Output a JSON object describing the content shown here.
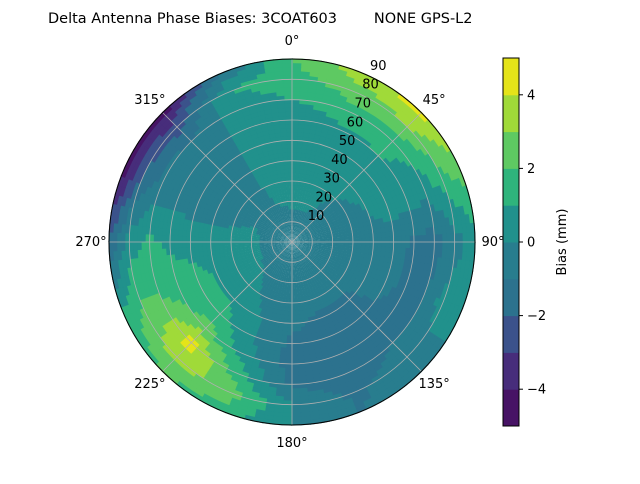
{
  "chart_data": {
    "type": "heatmap",
    "subtype": "polar filled contour",
    "title": "Delta Antenna Phase Biases: 3COAT603        NONE GPS-L2",
    "angular_axis": {
      "zero_location": "top",
      "direction": "clockwise",
      "tick_labels": [
        "0°",
        "45°",
        "90°",
        "135°",
        "180°",
        "225°",
        "270°",
        "315°"
      ],
      "tick_values": [
        0,
        45,
        90,
        135,
        180,
        225,
        270,
        315
      ]
    },
    "radial_axis": {
      "range": [
        0,
        90
      ],
      "tick_values": [
        10,
        20,
        30,
        40,
        50,
        60,
        70,
        80,
        90
      ],
      "tick_labels": [
        "10",
        "20",
        "30",
        "40",
        "50",
        "60",
        "70",
        "80",
        "90"
      ],
      "grid": true
    },
    "colorbar": {
      "label": "Bias (mm)",
      "range": [
        -5,
        5
      ],
      "levels": [
        -5,
        -4,
        -3,
        -2,
        -1,
        0,
        1,
        2,
        3,
        4,
        5
      ],
      "tick_values": [
        -4,
        -2,
        0,
        2,
        4
      ],
      "tick_labels": [
        "−4",
        "−2",
        "0",
        "2",
        "4"
      ],
      "colormap": "viridis",
      "level_colors": [
        "#471365",
        "#472d7b",
        "#3b528b",
        "#2c728e",
        "#287d8e",
        "#21918c",
        "#2fb47c",
        "#5ec962",
        "#a0da39",
        "#e5e419"
      ]
    },
    "grid_azimuths": [
      0,
      22.5,
      45,
      67.5,
      90,
      112.5,
      135,
      157.5,
      180,
      202.5,
      225,
      247.5,
      270,
      292.5,
      315,
      337.5
    ],
    "grid_zenith": [
      0,
      10,
      20,
      30,
      40,
      50,
      60,
      70,
      80,
      90
    ],
    "values": [
      [
        -0.5,
        -0.5,
        -0.5,
        -0.5,
        -0.5,
        -0.5,
        -0.5,
        -0.5,
        -0.5,
        -0.5,
        -0.5,
        -0.5,
        -0.5,
        -0.5,
        -0.5,
        -0.5
      ],
      [
        -0.5,
        -0.5,
        -0.5,
        -0.5,
        -0.5,
        -0.5,
        -0.5,
        -0.5,
        -0.5,
        -0.5,
        -0.5,
        -0.5,
        -0.5,
        -0.5,
        -0.5,
        -0.5
      ],
      [
        0.3,
        0.3,
        -0.3,
        -0.5,
        -0.5,
        -0.5,
        -0.5,
        -0.5,
        -0.5,
        -0.5,
        0,
        0.3,
        0.5,
        0,
        -0.5,
        0
      ],
      [
        0.5,
        0.5,
        0,
        -0.5,
        -0.5,
        -0.5,
        -0.8,
        -0.8,
        -0.5,
        -0.3,
        0.5,
        0.5,
        0.5,
        -0.3,
        -0.8,
        0.3
      ],
      [
        0.5,
        0.5,
        0.5,
        0,
        -0.3,
        -0.5,
        -1.2,
        -1.2,
        -0.8,
        0,
        0.8,
        0.8,
        0.5,
        -0.5,
        -0.8,
        0.5
      ],
      [
        0.5,
        0.5,
        0.5,
        0.5,
        -0.5,
        -0.8,
        -1.2,
        -1.5,
        -1.2,
        0,
        1.5,
        1.5,
        0.5,
        -0.5,
        -0.5,
        0.3
      ],
      [
        0.5,
        0.8,
        1,
        0.5,
        -1.2,
        -1.2,
        -1.2,
        -1.5,
        -1.5,
        0.5,
        2.5,
        1.5,
        0.8,
        -0.3,
        -0.5,
        0.3
      ],
      [
        1,
        1.5,
        1.5,
        0.5,
        -1.5,
        -1,
        -1,
        -1.5,
        -1.2,
        1.5,
        4.5,
        2,
        1.2,
        -0.5,
        -1,
        0.5
      ],
      [
        1.5,
        2.5,
        3,
        1.5,
        -0.5,
        0.5,
        -0.5,
        -1.2,
        0,
        2.5,
        3.5,
        2,
        0.5,
        -2,
        -2.5,
        1
      ],
      [
        2,
        3.5,
        4.5,
        2.5,
        0.5,
        0.5,
        -0.5,
        -1,
        0,
        1.5,
        2,
        1,
        -2,
        -4.5,
        -4.5,
        -1
      ]
    ]
  }
}
